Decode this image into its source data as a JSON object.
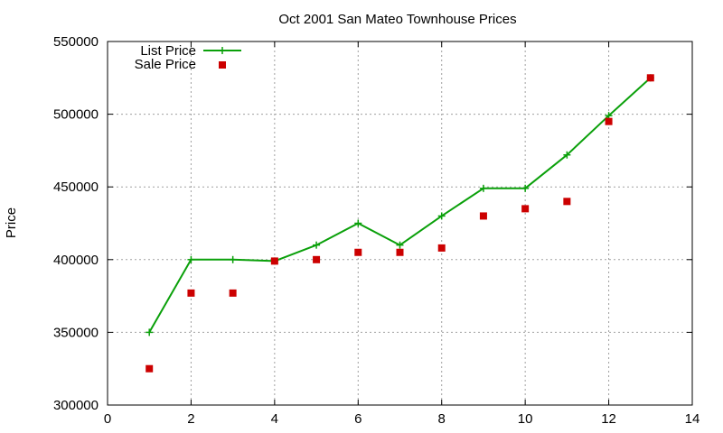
{
  "chart_data": {
    "type": "line",
    "title": "Oct 2001 San Mateo Townhouse Prices",
    "xlabel": "",
    "ylabel": "Price",
    "xlim": [
      0,
      14
    ],
    "ylim": [
      300000,
      550000
    ],
    "x_ticks": [
      "0",
      "2",
      "4",
      "6",
      "8",
      "10",
      "12",
      "14"
    ],
    "y_ticks": [
      "300000",
      "350000",
      "400000",
      "450000",
      "500000",
      "550000"
    ],
    "grid": true,
    "legend_position": "top-left",
    "series": [
      {
        "name": "List Price",
        "style": "line with plus markers",
        "color": "#0aa00a",
        "x": [
          1,
          2,
          3,
          4,
          5,
          6,
          7,
          8,
          9,
          10,
          11,
          12,
          13
        ],
        "y": [
          350000,
          400000,
          400000,
          399000,
          410000,
          425000,
          410000,
          430000,
          449000,
          449000,
          472000,
          499000,
          525000
        ]
      },
      {
        "name": "Sale Price",
        "style": "square markers",
        "color": "#cc0000",
        "x": [
          1,
          2,
          3,
          4,
          5,
          6,
          7,
          8,
          9,
          10,
          11,
          12,
          13
        ],
        "y": [
          325000,
          377000,
          377000,
          399000,
          400000,
          405000,
          405000,
          408000,
          430000,
          435000,
          440000,
          495000,
          525000
        ]
      }
    ]
  }
}
